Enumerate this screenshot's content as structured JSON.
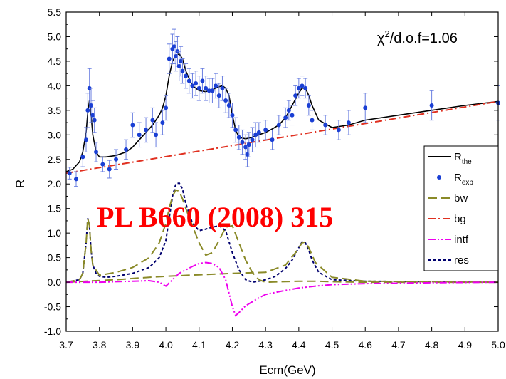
{
  "chart_data": {
    "type": "line",
    "xlabel": "Ecm(GeV)",
    "ylabel": "R",
    "xlim": [
      3.7,
      5.0
    ],
    "ylim": [
      -1.0,
      5.5
    ],
    "xticks": [
      "3.7",
      "3.8",
      "3.9",
      "4.0",
      "4.1",
      "4.2",
      "4.3",
      "4.4",
      "4.5",
      "4.6",
      "4.7",
      "4.8",
      "4.9",
      "5.0"
    ],
    "yticks": [
      "-1.0",
      "-0.5",
      "0.0",
      "0.5",
      "1.0",
      "1.5",
      "2.0",
      "2.5",
      "3.0",
      "3.5",
      "4.0",
      "4.5",
      "5.0",
      "5.5"
    ],
    "grid": false,
    "legend_position": "right",
    "annotation": {
      "sym": "χ",
      "sup": "2",
      "rest": "/d.o.f=1.06"
    },
    "stamp_text": "PL B660 (2008) 315",
    "legend": [
      {
        "key": "the",
        "base": "R",
        "sub": "the"
      },
      {
        "key": "exp",
        "base": "R",
        "sub": "exp"
      },
      {
        "key": "bw",
        "base": "bw",
        "sub": ""
      },
      {
        "key": "bg",
        "base": "bg",
        "sub": ""
      },
      {
        "key": "intf",
        "base": "intf",
        "sub": ""
      },
      {
        "key": "res",
        "base": "res",
        "sub": ""
      }
    ],
    "series": [
      {
        "key": "the",
        "color": "#000000",
        "dash": "",
        "x": [
          3.7,
          3.72,
          3.74,
          3.75,
          3.76,
          3.765,
          3.77,
          3.775,
          3.78,
          3.79,
          3.8,
          3.82,
          3.85,
          3.88,
          3.9,
          3.92,
          3.94,
          3.96,
          3.98,
          3.99,
          4.0,
          4.01,
          4.02,
          4.03,
          4.04,
          4.05,
          4.06,
          4.08,
          4.1,
          4.12,
          4.14,
          4.16,
          4.17,
          4.18,
          4.19,
          4.2,
          4.21,
          4.22,
          4.24,
          4.26,
          4.28,
          4.3,
          4.32,
          4.34,
          4.36,
          4.38,
          4.4,
          4.41,
          4.42,
          4.43,
          4.44,
          4.46,
          4.5,
          4.55,
          4.6,
          4.7,
          4.8,
          4.9,
          5.0
        ],
        "y": [
          2.25,
          2.3,
          2.45,
          2.65,
          3.05,
          3.45,
          3.7,
          3.4,
          3.0,
          2.65,
          2.55,
          2.55,
          2.58,
          2.65,
          2.75,
          2.9,
          3.05,
          3.2,
          3.4,
          3.55,
          3.8,
          4.2,
          4.5,
          4.62,
          4.65,
          4.55,
          4.3,
          4.0,
          3.9,
          3.88,
          3.92,
          3.98,
          4.0,
          3.95,
          3.8,
          3.4,
          3.1,
          2.95,
          2.92,
          2.95,
          3.0,
          3.05,
          3.12,
          3.2,
          3.35,
          3.6,
          3.85,
          3.95,
          3.95,
          3.8,
          3.6,
          3.3,
          3.15,
          3.2,
          3.3,
          3.4,
          3.5,
          3.6,
          3.68
        ]
      },
      {
        "key": "bg",
        "color": "#e03020",
        "dash": "10,4,2,4",
        "x": [
          3.7,
          5.0
        ],
        "y": [
          2.22,
          3.68
        ]
      },
      {
        "key": "res",
        "color": "#00006e",
        "dash": "4,3",
        "x": [
          3.7,
          3.74,
          3.75,
          3.76,
          3.765,
          3.77,
          3.775,
          3.78,
          3.79,
          3.8,
          3.82,
          3.85,
          3.9,
          3.95,
          3.98,
          4.0,
          4.01,
          4.02,
          4.03,
          4.04,
          4.05,
          4.06,
          4.08,
          4.1,
          4.12,
          4.14,
          4.16,
          4.18,
          4.2,
          4.22,
          4.24,
          4.26,
          4.28,
          4.3,
          4.33,
          4.36,
          4.38,
          4.4,
          4.41,
          4.42,
          4.43,
          4.44,
          4.46,
          4.5,
          4.6,
          4.8,
          5.0
        ],
        "y": [
          0.0,
          0.05,
          0.18,
          0.8,
          1.3,
          1.15,
          0.65,
          0.35,
          0.18,
          0.12,
          0.1,
          0.12,
          0.18,
          0.3,
          0.5,
          0.85,
          1.3,
          1.75,
          2.0,
          2.02,
          1.9,
          1.6,
          1.2,
          1.05,
          1.08,
          1.12,
          1.15,
          1.05,
          0.6,
          0.25,
          0.05,
          0.0,
          0.02,
          0.05,
          0.12,
          0.28,
          0.45,
          0.7,
          0.82,
          0.8,
          0.65,
          0.45,
          0.2,
          0.05,
          0.02,
          0.01,
          0.0
        ]
      },
      {
        "key": "bw",
        "color": "#8a8a28",
        "dash": "12,6",
        "x": [
          3.7,
          3.74,
          3.75,
          3.76,
          3.765,
          3.77,
          3.775,
          3.78,
          3.8,
          3.85,
          3.9,
          3.95,
          3.98,
          4.0,
          4.01,
          4.02,
          4.03,
          4.04,
          4.05,
          4.06,
          4.08,
          4.1,
          4.12,
          4.14,
          4.16,
          4.18,
          4.2,
          4.22,
          4.24,
          4.26,
          4.28,
          4.3,
          4.35,
          4.4,
          4.41,
          4.42,
          4.43,
          4.45,
          4.5,
          4.6,
          5.0
        ],
        "y": [
          0.0,
          0.05,
          0.18,
          0.8,
          1.3,
          1.15,
          0.65,
          0.35,
          0.14,
          0.2,
          0.3,
          0.5,
          0.8,
          1.2,
          1.5,
          1.75,
          1.88,
          1.85,
          1.7,
          1.5,
          1.15,
          0.8,
          0.55,
          0.6,
          0.85,
          1.12,
          1.15,
          0.8,
          0.45,
          0.2,
          0.05,
          0.0,
          0.01,
          0.02,
          0.02,
          0.02,
          0.02,
          0.02,
          0.01,
          0.0,
          0.0
        ]
      },
      {
        "key": "bw2",
        "color": "#8a8a28",
        "dash": "12,6",
        "x": [
          3.7,
          3.85,
          3.95,
          4.0,
          4.1,
          4.2,
          4.3,
          4.36,
          4.39,
          4.41,
          4.42,
          4.43,
          4.45,
          4.5,
          4.6,
          5.0
        ],
        "y": [
          0.0,
          0.05,
          0.1,
          0.12,
          0.15,
          0.18,
          0.2,
          0.35,
          0.6,
          0.8,
          0.82,
          0.7,
          0.4,
          0.1,
          0.02,
          0.0
        ]
      },
      {
        "key": "intf",
        "color": "#ee00ee",
        "dash": "10,3,2,3,2,3",
        "x": [
          3.7,
          3.8,
          3.9,
          3.95,
          3.98,
          4.0,
          4.02,
          4.04,
          4.06,
          4.08,
          4.1,
          4.12,
          4.14,
          4.16,
          4.18,
          4.2,
          4.21,
          4.22,
          4.24,
          4.26,
          4.28,
          4.3,
          4.35,
          4.4,
          4.45,
          4.5,
          4.6,
          4.8,
          5.0
        ],
        "y": [
          0.0,
          0.0,
          0.02,
          0.03,
          0.0,
          -0.08,
          0.05,
          0.18,
          0.25,
          0.32,
          0.38,
          0.4,
          0.38,
          0.3,
          0.05,
          -0.5,
          -0.68,
          -0.62,
          -0.48,
          -0.4,
          -0.32,
          -0.25,
          -0.18,
          -0.12,
          -0.08,
          -0.05,
          -0.03,
          -0.01,
          0.0
        ]
      }
    ],
    "points": {
      "key": "exp",
      "color": "#1a3fd4",
      "x": [
        3.71,
        3.73,
        3.75,
        3.76,
        3.765,
        3.77,
        3.775,
        3.78,
        3.785,
        3.79,
        3.81,
        3.83,
        3.85,
        3.88,
        3.9,
        3.92,
        3.94,
        3.96,
        3.97,
        3.99,
        4.0,
        4.01,
        4.02,
        4.025,
        4.03,
        4.035,
        4.04,
        4.045,
        4.05,
        4.06,
        4.07,
        4.08,
        4.09,
        4.1,
        4.11,
        4.12,
        4.13,
        4.14,
        4.15,
        4.16,
        4.17,
        4.18,
        4.19,
        4.2,
        4.21,
        4.22,
        4.23,
        4.24,
        4.245,
        4.25,
        4.26,
        4.27,
        4.28,
        4.3,
        4.32,
        4.34,
        4.36,
        4.37,
        4.38,
        4.39,
        4.4,
        4.41,
        4.42,
        4.43,
        4.44,
        4.48,
        4.52,
        4.55,
        4.6,
        4.8,
        5.0
      ],
      "y": [
        2.22,
        2.1,
        2.55,
        2.9,
        3.5,
        3.95,
        3.6,
        3.4,
        3.3,
        2.65,
        2.4,
        2.3,
        2.5,
        2.7,
        3.2,
        3.0,
        3.1,
        3.3,
        3.0,
        3.25,
        3.55,
        4.55,
        4.75,
        4.8,
        4.6,
        4.7,
        4.4,
        4.5,
        4.3,
        4.2,
        4.1,
        4.0,
        4.05,
        3.95,
        4.1,
        3.95,
        3.9,
        3.9,
        4.0,
        3.8,
        3.95,
        3.7,
        3.6,
        3.4,
        3.1,
        2.95,
        2.85,
        2.75,
        2.6,
        2.8,
        2.9,
        3.0,
        3.05,
        3.1,
        2.9,
        3.2,
        3.35,
        3.5,
        3.4,
        3.8,
        3.95,
        4.0,
        3.95,
        3.6,
        3.3,
        3.2,
        3.1,
        3.25,
        3.55,
        3.6,
        3.65
      ],
      "err": [
        0.12,
        0.15,
        0.2,
        0.25,
        0.35,
        0.4,
        0.35,
        0.3,
        0.25,
        0.2,
        0.15,
        0.18,
        0.2,
        0.2,
        0.25,
        0.25,
        0.25,
        0.25,
        0.25,
        0.25,
        0.25,
        0.3,
        0.3,
        0.35,
        0.3,
        0.3,
        0.3,
        0.3,
        0.25,
        0.25,
        0.25,
        0.25,
        0.25,
        0.25,
        0.25,
        0.25,
        0.25,
        0.25,
        0.25,
        0.25,
        0.25,
        0.25,
        0.25,
        0.25,
        0.25,
        0.25,
        0.25,
        0.25,
        0.25,
        0.25,
        0.25,
        0.25,
        0.2,
        0.2,
        0.2,
        0.2,
        0.2,
        0.2,
        0.2,
        0.2,
        0.2,
        0.2,
        0.2,
        0.2,
        0.2,
        0.2,
        0.2,
        0.25,
        0.3,
        0.3,
        0.35
      ]
    }
  }
}
